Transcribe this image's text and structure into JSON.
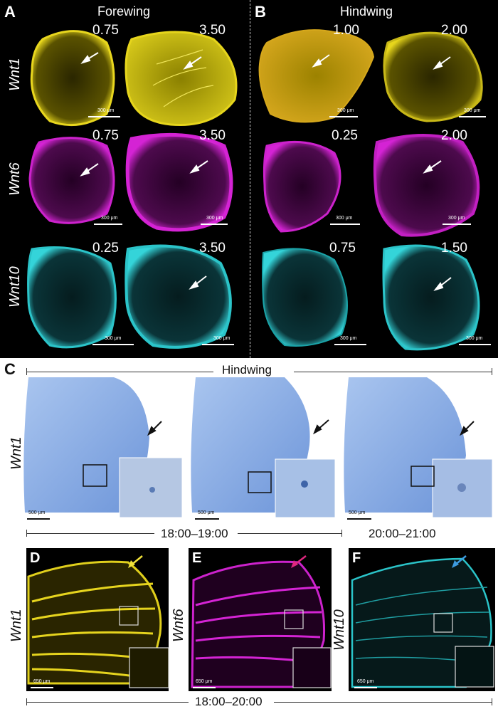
{
  "panel_a": {
    "letter": "A",
    "title": "Forewing"
  },
  "panel_b": {
    "letter": "B",
    "title": "Hindwing"
  },
  "genes": {
    "wnt1": "Wnt1",
    "wnt6": "Wnt6",
    "wnt10": "Wnt10"
  },
  "grid_times": {
    "a_row1": [
      "0.75",
      "3.50"
    ],
    "a_row2": [
      "0.75",
      "3.50"
    ],
    "a_row3": [
      "0.25",
      "3.50"
    ],
    "b_row1": [
      "1.00",
      "2.00"
    ],
    "b_row2": [
      "0.25",
      "2.00"
    ],
    "b_row3": [
      "0.75",
      "1.50"
    ]
  },
  "scale_300": "300 μm",
  "scale_500": "500 μm",
  "scale_650": "650 μm",
  "panel_c": {
    "letter": "C",
    "title": "Hindwing",
    "gene": "Wnt1",
    "range1": "18:00–19:00",
    "range2": "20:00–21:00"
  },
  "panel_d": {
    "letter": "D",
    "gene": "Wnt1"
  },
  "panel_e": {
    "letter": "E",
    "gene": "Wnt6"
  },
  "panel_f": {
    "letter": "F",
    "gene": "Wnt10"
  },
  "bottom_range": "18:00–20:00",
  "colors": {
    "yellow": "#d8c81a",
    "magenta": "#c21fc2",
    "cyan": "#2bc4c9",
    "blue_stain": "#8fb3e6",
    "yellow_arrow": "#f2e23a",
    "pink_arrow": "#e0277f",
    "blue_arrow": "#3d9be0"
  }
}
